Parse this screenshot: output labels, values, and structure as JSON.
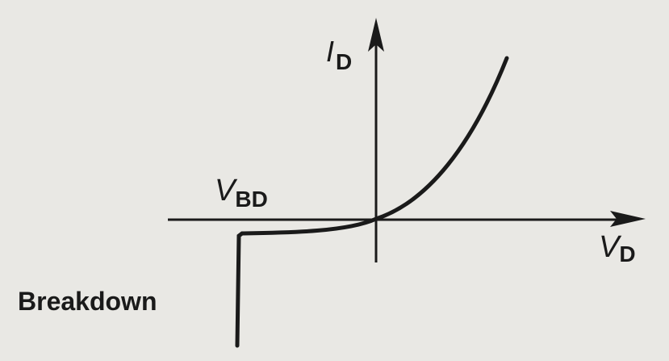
{
  "diagram": {
    "y_axis_label": {
      "main": "I",
      "sub": "D"
    },
    "x_axis_label": {
      "main": "V",
      "sub": "D"
    },
    "breakdown_voltage_label": {
      "main": "V",
      "sub": "BD"
    },
    "region_label": "Breakdown",
    "colors": {
      "ink": "#1a1a1a",
      "paper": "#e9e8e4"
    }
  }
}
